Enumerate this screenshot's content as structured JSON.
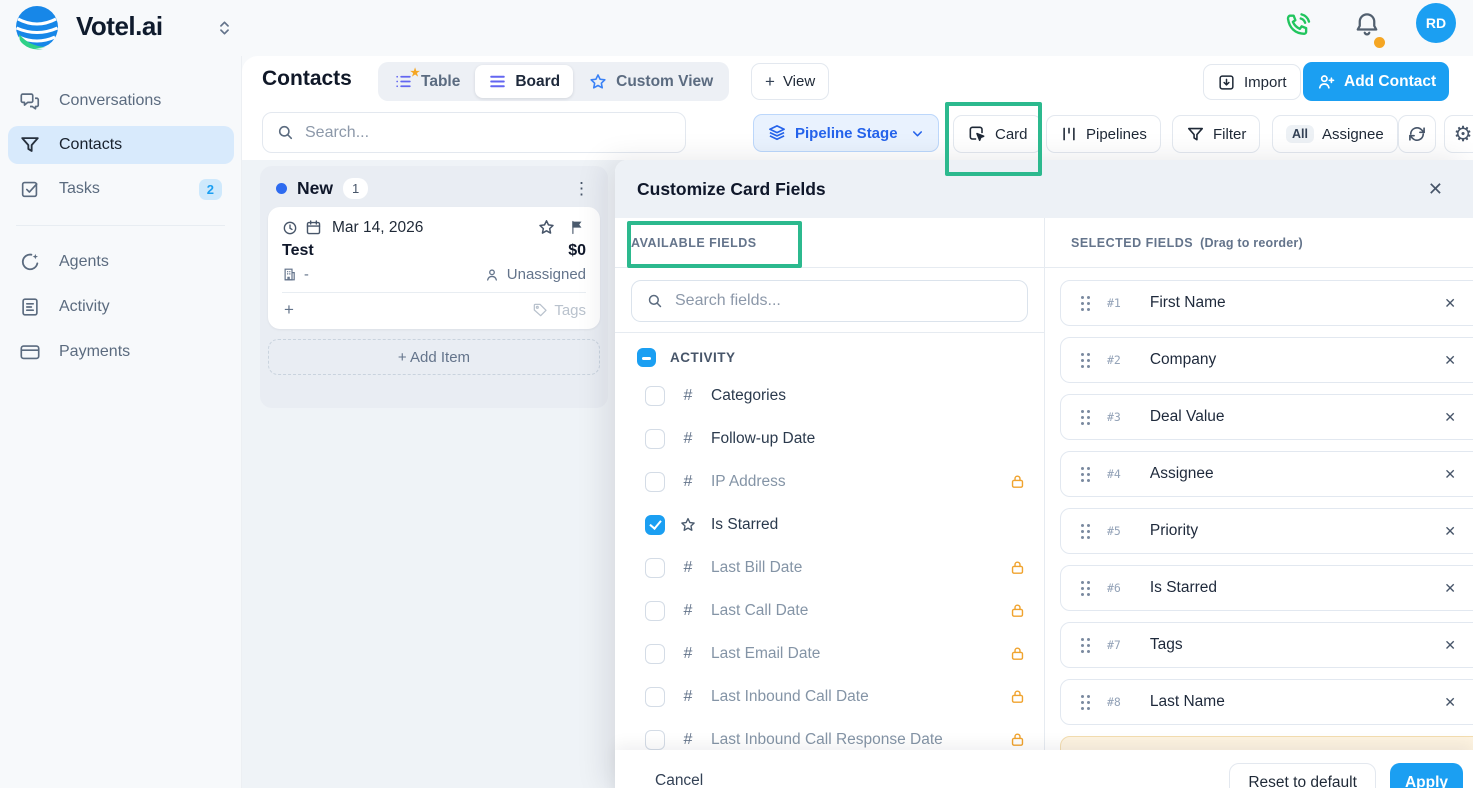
{
  "brand": {
    "name": "Votel.ai"
  },
  "topbar": {
    "avatar_initials": "RD"
  },
  "sidebar": {
    "items": [
      {
        "label": "Conversations"
      },
      {
        "label": "Contacts",
        "active": true
      },
      {
        "label": "Tasks",
        "badge": "2"
      },
      {
        "label": "Agents"
      },
      {
        "label": "Activity"
      },
      {
        "label": "Payments"
      }
    ]
  },
  "header": {
    "title": "Contacts",
    "tabs": [
      {
        "label": "Table"
      },
      {
        "label": "Board",
        "active": true
      },
      {
        "label": "Custom View"
      }
    ],
    "view_button": "View",
    "import_button": "Import",
    "add_contact_button": "Add Contact"
  },
  "filters": {
    "search_placeholder": "Search...",
    "pipeline_stage": "Pipeline Stage",
    "card_button": "Card",
    "pipelines_button": "Pipelines",
    "filter_button": "Filter",
    "assignee_badge": "All",
    "assignee_button": "Assignee"
  },
  "board": {
    "column": {
      "name": "New",
      "count": "1",
      "card": {
        "date": "Mar 14, 2026",
        "title": "Test",
        "value": "$0",
        "company": "-",
        "assignee": "Unassigned",
        "tags_label": "Tags"
      },
      "add_item_label": "+ Add Item"
    }
  },
  "modal": {
    "title": "Customize Card Fields",
    "available": {
      "header": "AVAILABLE FIELDS",
      "search_placeholder": "Search fields...",
      "group_label": "ACTIVITY",
      "fields": [
        {
          "label": "Categories",
          "icon": "hash"
        },
        {
          "label": "Follow-up Date",
          "icon": "hash"
        },
        {
          "label": "IP Address",
          "icon": "hash",
          "locked": true,
          "muted": true
        },
        {
          "label": "Is Starred",
          "icon": "star",
          "checked": true
        },
        {
          "label": "Last Bill Date",
          "icon": "hash",
          "locked": true,
          "muted": true
        },
        {
          "label": "Last Call Date",
          "icon": "hash",
          "locked": true,
          "muted": true
        },
        {
          "label": "Last Email Date",
          "icon": "hash",
          "locked": true,
          "muted": true
        },
        {
          "label": "Last Inbound Call Date",
          "icon": "hash",
          "locked": true,
          "muted": true
        },
        {
          "label": "Last Inbound Call Response Date",
          "icon": "hash",
          "locked": true,
          "muted": true
        }
      ]
    },
    "selected": {
      "header": "SELECTED FIELDS",
      "subheader": "(Drag to reorder)",
      "items": [
        {
          "rank": "#1",
          "label": "First Name"
        },
        {
          "rank": "#2",
          "label": "Company"
        },
        {
          "rank": "#3",
          "label": "Deal Value"
        },
        {
          "rank": "#4",
          "label": "Assignee"
        },
        {
          "rank": "#5",
          "label": "Priority"
        },
        {
          "rank": "#6",
          "label": "Is Starred"
        },
        {
          "rank": "#7",
          "label": "Tags"
        },
        {
          "rank": "#8",
          "label": "Last Name"
        }
      ]
    },
    "footer": {
      "cancel": "Cancel",
      "reset": "Reset to default",
      "apply": "Apply"
    }
  },
  "colors": {
    "accent": "#1b9ff2",
    "annotation": "#2cb98e",
    "lock": "#f0a32e",
    "indigo": "#6366f1",
    "pipeline_blue": "#2563eb",
    "phone_green": "#21c55e",
    "notification_orange": "#f5a623"
  }
}
